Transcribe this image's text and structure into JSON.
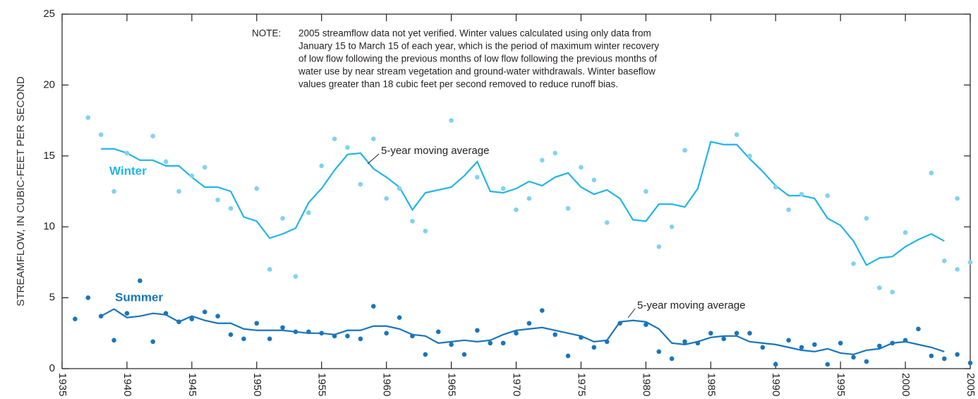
{
  "chart_data": {
    "type": "line",
    "y_label": "STREAMFLOW, IN CUBIC-FEET PER SECOND",
    "note": {
      "label": "NOTE:",
      "lines": [
        "2005 streamflow data not yet verified. Winter values calculated using only data from",
        "January 15 to March 15 of each year, which is the period of maximum winter recovery",
        "of low flow following the previous months of low flow following the previous months of",
        "water use by near stream vegetation and ground-water withdrawals. Winter baseflow",
        "values greater than 18 cubic feet per second removed to reduce runoff bias."
      ]
    },
    "xlim": [
      1935,
      2005
    ],
    "xticks": [
      1935,
      1940,
      1945,
      1950,
      1955,
      1960,
      1965,
      1970,
      1975,
      1980,
      1985,
      1990,
      1995,
      2000,
      2005
    ],
    "ylim": [
      0,
      25
    ],
    "yticks": [
      0,
      5,
      10,
      15,
      20,
      25
    ],
    "series": [
      {
        "name": "Winter",
        "color": "#7fd3f0",
        "line_color": "#22b5e8",
        "x": [
          1937,
          1938,
          1939,
          1940,
          1942,
          1943,
          1944,
          1945,
          1946,
          1947,
          1948,
          1950,
          1951,
          1952,
          1953,
          1954,
          1955,
          1956,
          1957,
          1958,
          1959,
          1960,
          1961,
          1962,
          1963,
          1965,
          1967,
          1969,
          1970,
          1971,
          1972,
          1973,
          1974,
          1975,
          1976,
          1977,
          1980,
          1981,
          1982,
          1983,
          1987,
          1988,
          1990,
          1991,
          1992,
          1994,
          1996,
          1997,
          1998,
          1999,
          2000,
          2002,
          2003,
          2004,
          2004,
          2005
        ],
        "values": [
          17.7,
          16.5,
          12.5,
          15.2,
          16.4,
          14.6,
          12.5,
          13.6,
          14.2,
          11.9,
          11.3,
          12.7,
          7.0,
          10.6,
          6.5,
          11.0,
          14.3,
          16.2,
          15.6,
          13.0,
          16.2,
          12.0,
          12.7,
          10.4,
          9.7,
          17.5,
          13.5,
          12.7,
          11.2,
          12.0,
          14.7,
          15.2,
          11.3,
          14.2,
          13.3,
          10.3,
          12.5,
          8.6,
          10.0,
          15.4,
          16.5,
          15.0,
          12.8,
          11.2,
          12.3,
          12.2,
          7.4,
          10.6,
          5.7,
          5.4,
          9.6,
          13.8,
          7.6,
          12.0,
          7.0,
          7.5
        ],
        "average": {
          "label": "5-year moving average",
          "x": [
            1938,
            1939,
            1940,
            1941,
            1942,
            1943,
            1944,
            1945,
            1946,
            1947,
            1948,
            1949,
            1950,
            1951,
            1952,
            1953,
            1954,
            1955,
            1956,
            1957,
            1958,
            1959,
            1960,
            1961,
            1962,
            1963,
            1964,
            1965,
            1966,
            1967,
            1968,
            1969,
            1970,
            1971,
            1972,
            1973,
            1974,
            1975,
            1976,
            1977,
            1978,
            1979,
            1980,
            1981,
            1982,
            1983,
            1984,
            1985,
            1986,
            1987,
            1988,
            1989,
            1990,
            1991,
            1992,
            1993,
            1994,
            1995,
            1996,
            1997,
            1998,
            1999,
            2000,
            2001,
            2002,
            2003
          ],
          "values": [
            15.5,
            15.5,
            15.2,
            14.7,
            14.7,
            14.3,
            14.3,
            13.5,
            12.8,
            12.8,
            12.5,
            10.7,
            10.4,
            9.2,
            9.5,
            9.9,
            11.7,
            12.7,
            14.0,
            15.1,
            15.2,
            14.1,
            13.5,
            12.8,
            11.2,
            12.4,
            12.6,
            12.8,
            13.6,
            14.6,
            12.5,
            12.4,
            12.7,
            13.2,
            12.9,
            13.5,
            13.8,
            12.8,
            12.3,
            12.6,
            12.0,
            10.5,
            10.4,
            11.6,
            11.6,
            11.4,
            12.7,
            16.0,
            15.8,
            15.8,
            14.8,
            13.9,
            12.9,
            12.2,
            12.2,
            12.0,
            10.6,
            10.1,
            9.0,
            7.3,
            7.8,
            7.9,
            8.6,
            9.1,
            9.5,
            9.0
          ]
        }
      },
      {
        "name": "Summer",
        "color": "#1a75bb",
        "line_color": "#1a75bb",
        "x": [
          1936,
          1937,
          1938,
          1939,
          1940,
          1941,
          1942,
          1943,
          1944,
          1945,
          1946,
          1947,
          1948,
          1949,
          1950,
          1951,
          1952,
          1953,
          1954,
          1955,
          1956,
          1957,
          1958,
          1959,
          1960,
          1961,
          1962,
          1963,
          1964,
          1965,
          1966,
          1967,
          1968,
          1969,
          1970,
          1971,
          1972,
          1973,
          1974,
          1975,
          1976,
          1977,
          1978,
          1980,
          1981,
          1982,
          1983,
          1984,
          1985,
          1986,
          1987,
          1988,
          1989,
          1990,
          1991,
          1992,
          1993,
          1994,
          1995,
          1996,
          1997,
          1998,
          1999,
          2000,
          2001,
          2002,
          2003,
          2004,
          2005
        ],
        "values": [
          3.5,
          5.0,
          3.7,
          2.0,
          3.9,
          6.2,
          1.9,
          3.9,
          3.3,
          3.5,
          4.0,
          3.7,
          2.4,
          2.1,
          3.2,
          2.1,
          2.9,
          2.6,
          2.6,
          2.5,
          2.3,
          2.3,
          2.1,
          4.4,
          2.5,
          3.6,
          2.3,
          1.0,
          2.6,
          1.7,
          1.0,
          2.7,
          1.8,
          1.8,
          2.5,
          3.2,
          4.1,
          2.4,
          0.9,
          2.2,
          1.5,
          1.9,
          3.2,
          3.1,
          1.2,
          0.7,
          1.9,
          1.8,
          2.5,
          2.1,
          2.5,
          2.5,
          1.5,
          0.3,
          2.0,
          1.5,
          1.7,
          0.3,
          1.8,
          0.8,
          0.5,
          1.6,
          1.8,
          2.0,
          2.8,
          0.9,
          0.7,
          1.0,
          0.4
        ],
        "average": {
          "label": "5-year moving average",
          "x": [
            1938,
            1939,
            1940,
            1941,
            1942,
            1943,
            1944,
            1945,
            1946,
            1947,
            1948,
            1949,
            1950,
            1951,
            1952,
            1953,
            1954,
            1955,
            1956,
            1957,
            1958,
            1959,
            1960,
            1961,
            1962,
            1963,
            1964,
            1965,
            1966,
            1967,
            1968,
            1969,
            1970,
            1971,
            1972,
            1973,
            1974,
            1975,
            1976,
            1977,
            1978,
            1979,
            1980,
            1981,
            1982,
            1983,
            1984,
            1985,
            1986,
            1987,
            1988,
            1989,
            1990,
            1991,
            1992,
            1993,
            1994,
            1995,
            1996,
            1997,
            1998,
            1999,
            2000,
            2001,
            2002,
            2003
          ],
          "values": [
            3.7,
            4.2,
            3.6,
            3.7,
            3.9,
            3.8,
            3.3,
            3.7,
            3.4,
            3.2,
            3.2,
            2.8,
            2.7,
            2.7,
            2.7,
            2.6,
            2.5,
            2.5,
            2.4,
            2.7,
            2.7,
            3.0,
            3.0,
            2.8,
            2.4,
            2.3,
            1.8,
            1.9,
            2.0,
            1.9,
            2.0,
            2.4,
            2.7,
            2.8,
            2.9,
            2.7,
            2.5,
            2.3,
            1.9,
            2.0,
            3.3,
            3.4,
            3.3,
            2.8,
            1.8,
            1.7,
            1.9,
            2.2,
            2.3,
            2.3,
            1.9,
            1.8,
            1.7,
            1.5,
            1.3,
            1.2,
            1.4,
            1.1,
            1.0,
            1.3,
            1.4,
            1.8,
            1.9,
            1.7,
            1.5,
            1.2
          ]
        }
      }
    ]
  }
}
